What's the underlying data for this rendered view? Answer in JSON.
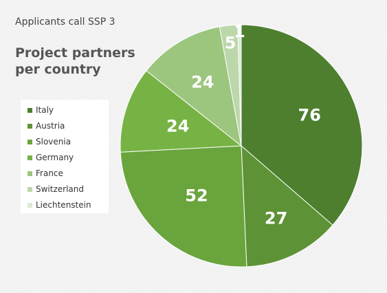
{
  "subtitle": "Applicants call SSP 3",
  "title": "Project partners per country",
  "chart_data": {
    "type": "pie",
    "title": "Project partners per country",
    "categories": [
      "Italy",
      "Austria",
      "Slovenia",
      "Germany",
      "France",
      "Switzerland",
      "Liechtenstein"
    ],
    "values": [
      76,
      27,
      52,
      24,
      24,
      5,
      1
    ],
    "colors": [
      "#4d7f2f",
      "#5d9336",
      "#6aa43d",
      "#76b344",
      "#9cc57e",
      "#bcd7aa",
      "#dde9d3"
    ],
    "data_labels": [
      "76",
      "27",
      "52",
      "24",
      "24",
      "5",
      "1"
    ],
    "legend_position": "left",
    "start_angle": "12 o'clock",
    "direction": "clockwise"
  }
}
